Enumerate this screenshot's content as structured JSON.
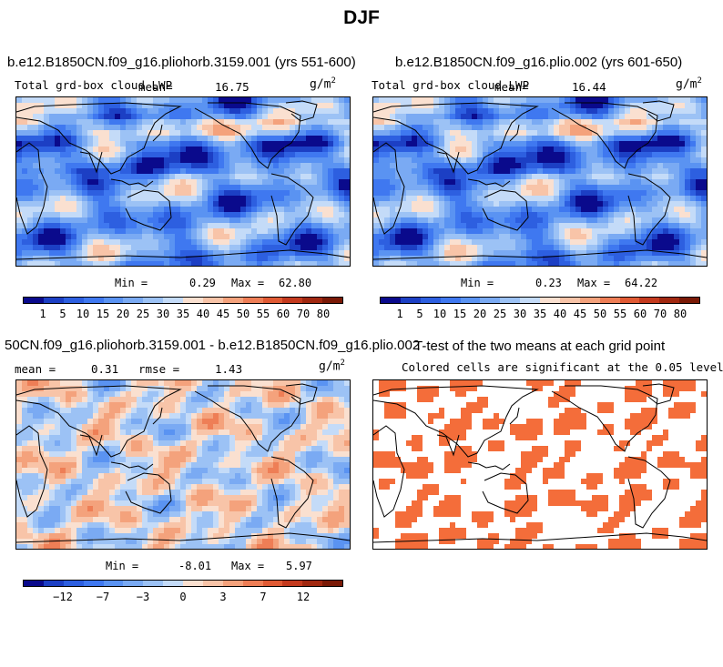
{
  "title": "DJF",
  "palette": {
    "full": [
      "#0a0a8c",
      "#1c3fc4",
      "#2d5fe0",
      "#3f78f0",
      "#5a93f2",
      "#7aaaf3",
      "#9cc2f5",
      "#c4dbf8",
      "#fae0d0",
      "#f8c4a8",
      "#f4a27c",
      "#ee7e56",
      "#e05a34",
      "#c43a1e",
      "#a12810",
      "#7a1906"
    ],
    "diff": [
      "#0a0a8c",
      "#1c3fc4",
      "#2d5fe0",
      "#3f78f0",
      "#5a93f2",
      "#7aaaf3",
      "#9cc2f5",
      "#c4dbf8",
      "#fae0d0",
      "#f8c4a8",
      "#f4a27c",
      "#ee7e56",
      "#e05a34",
      "#c43a1e",
      "#a12810",
      "#7a1906"
    ],
    "significant": "#f46d3a"
  },
  "panels": [
    {
      "title": "b.e12.B1850CN.f09_g16.pliohorb.3159.001 (yrs 551-600)",
      "left_label": "Total grd-box cloud LWP",
      "mean_label": "mean=",
      "mean_value": "16.75",
      "unit": "g/m",
      "unit_sup": "2",
      "min_label": "Min =",
      "min_value": "0.29",
      "max_label": "Max =",
      "max_value": "62.80",
      "colorbar_ticks": [
        "1",
        "5",
        "10",
        "15",
        "20",
        "25",
        "30",
        "35",
        "40",
        "45",
        "50",
        "55",
        "60",
        "70",
        "80"
      ]
    },
    {
      "title": "b.e12.B1850CN.f09_g16.plio.002 (yrs 601-650)",
      "left_label": "Total grd-box cloud LWP",
      "mean_label": "mean=",
      "mean_value": "16.44",
      "unit": "g/m",
      "unit_sup": "2",
      "min_label": "Min =",
      "min_value": "0.23",
      "max_label": "Max =",
      "max_value": "64.22",
      "colorbar_ticks": [
        "1",
        "5",
        "10",
        "15",
        "20",
        "25",
        "30",
        "35",
        "40",
        "45",
        "50",
        "55",
        "60",
        "70",
        "80"
      ]
    },
    {
      "title": "50CN.f09_g16.pliohorb.3159.001 - b.e12.B1850CN.f09_g16.plio.002",
      "left_label": "mean =",
      "mean_value": "0.31",
      "rmse_label": "rmse =",
      "rmse_value": "1.43",
      "unit": "g/m",
      "unit_sup": "2",
      "min_label": "Min =",
      "min_value": "-8.01",
      "max_label": "Max =",
      "max_value": "5.97",
      "colorbar_ticks": [
        "−12",
        "−7",
        "−3",
        "0",
        "3",
        "7",
        "12"
      ]
    },
    {
      "title": "T-test of the two means at each grid point",
      "subtitle": "Colored cells are significant at the 0.05 level"
    }
  ]
}
